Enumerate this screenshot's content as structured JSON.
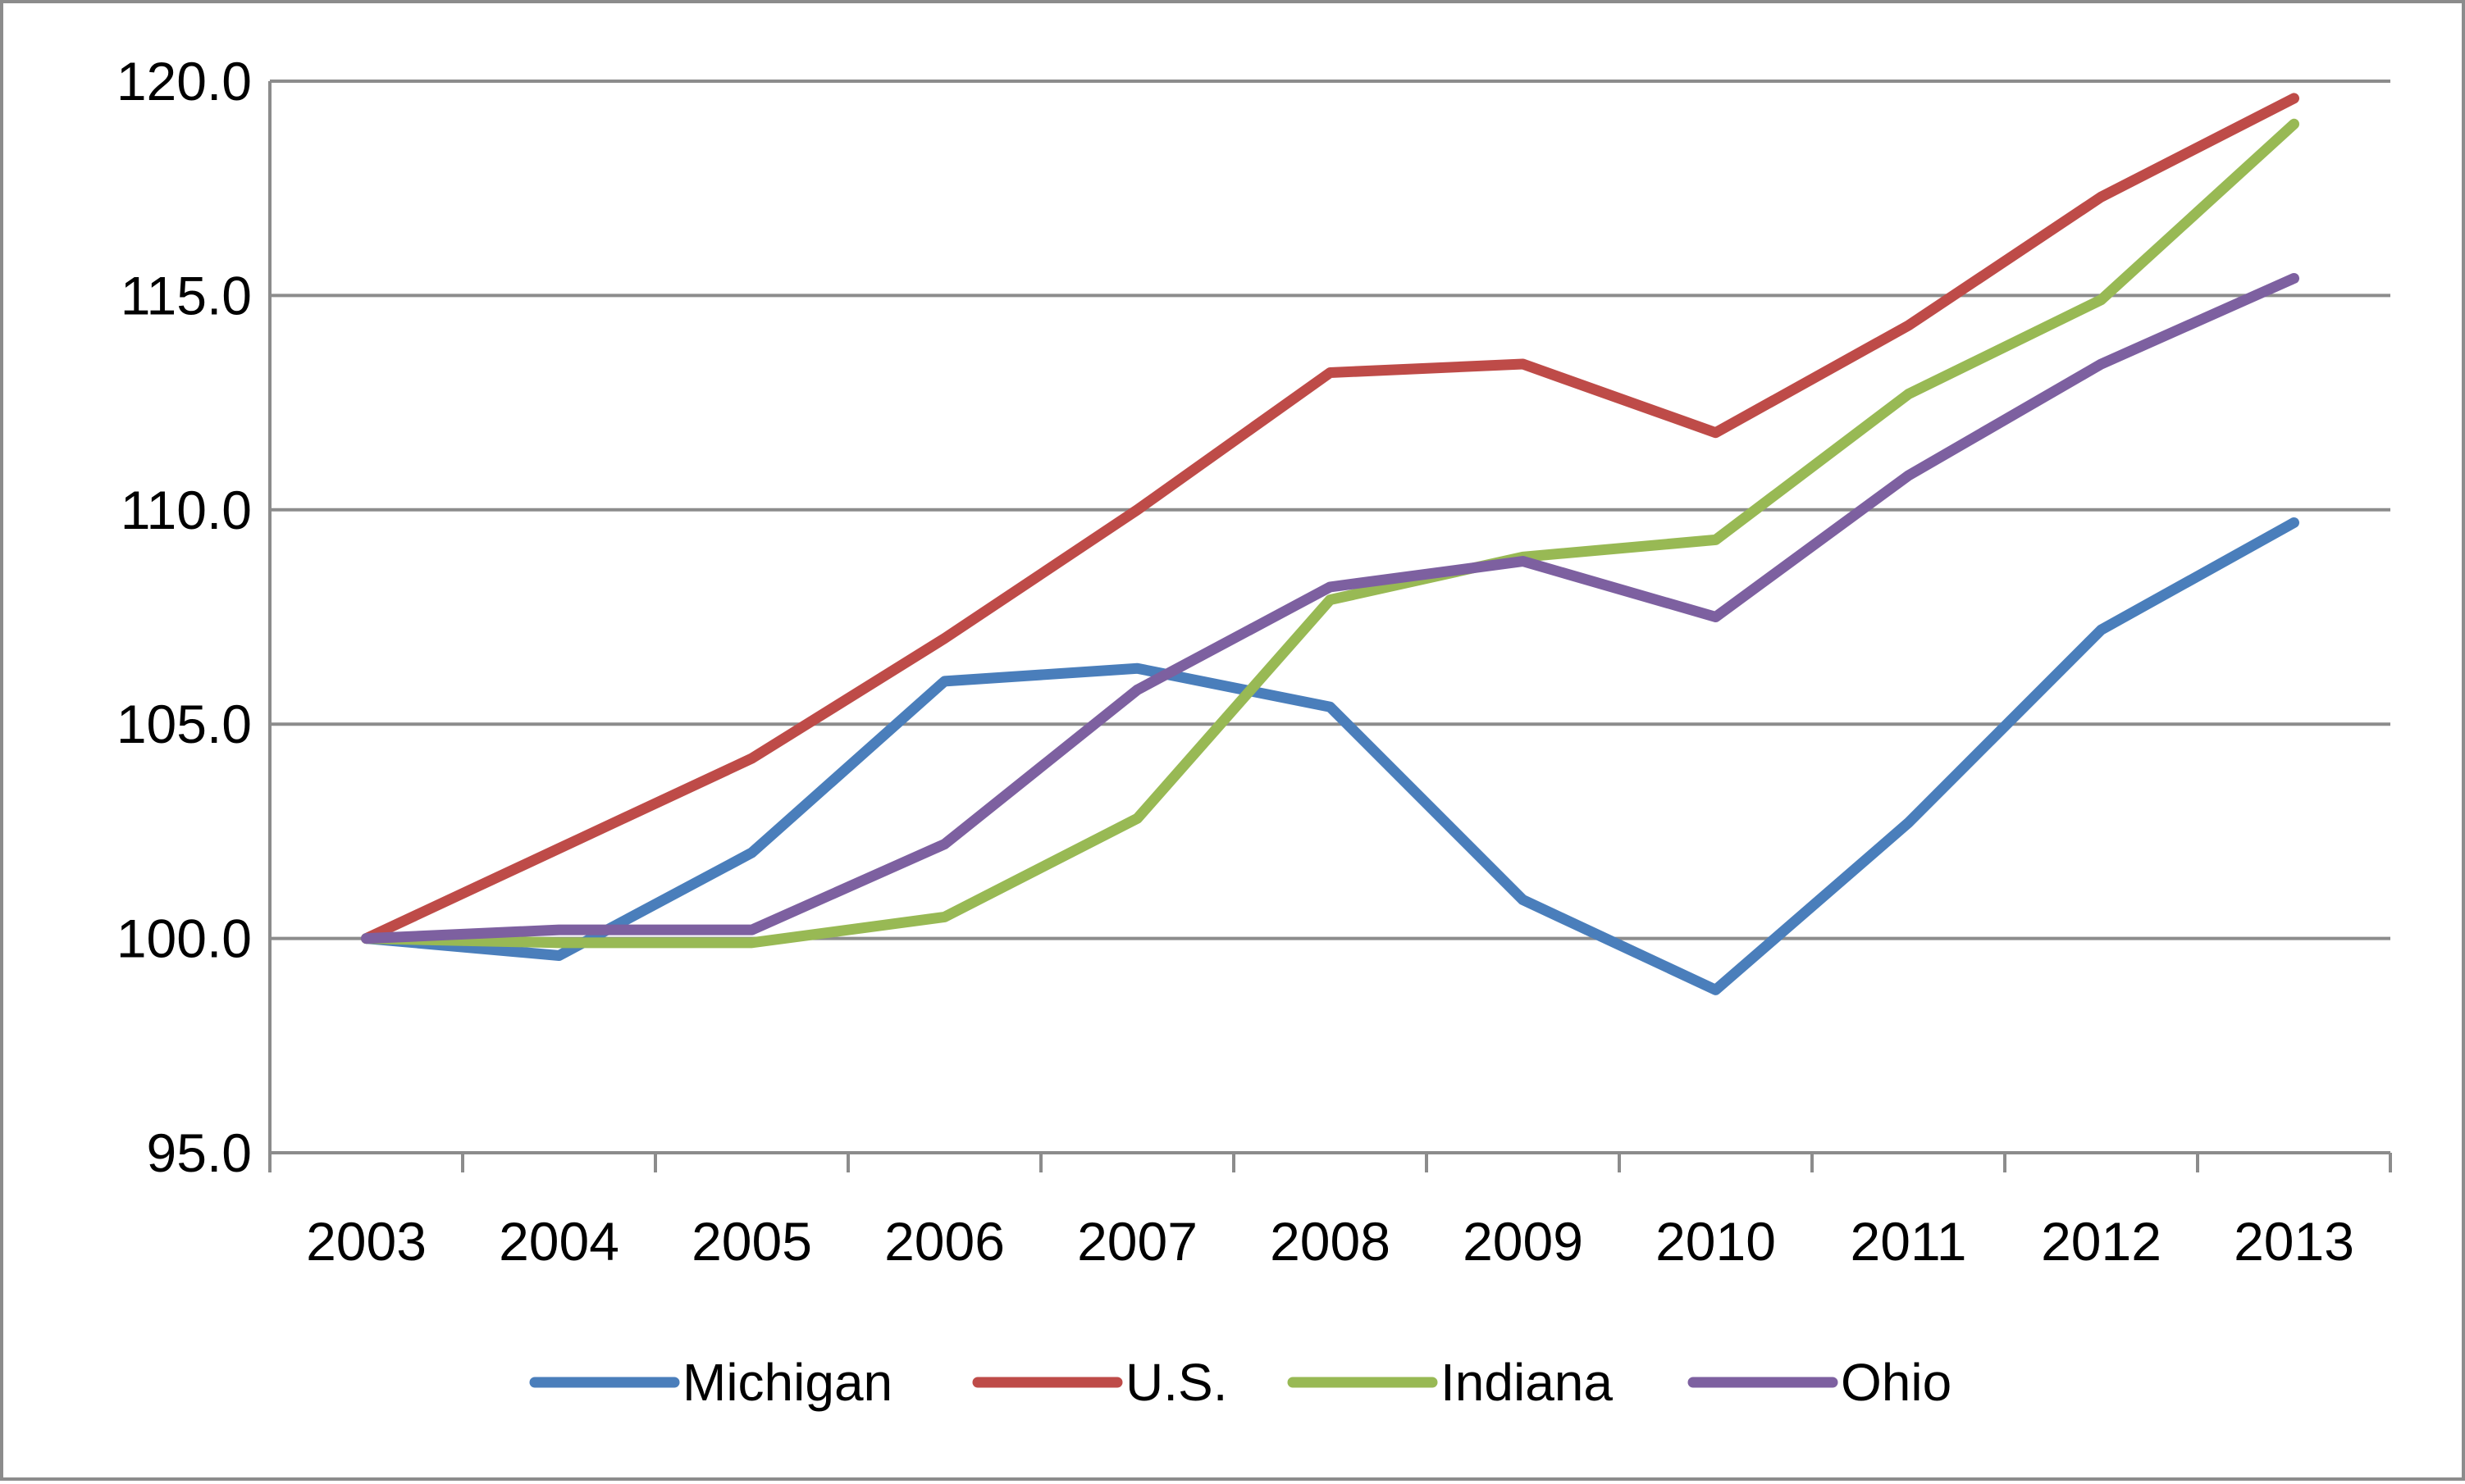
{
  "chart_data": {
    "type": "line",
    "title": "",
    "xlabel": "",
    "ylabel": "",
    "categories": [
      "2003",
      "2004",
      "2005",
      "2006",
      "2007",
      "2008",
      "2009",
      "2010",
      "2011",
      "2012",
      "2013"
    ],
    "ylim": [
      95.0,
      120.0
    ],
    "yticks": [
      "95.0",
      "100.0",
      "105.0",
      "110.0",
      "115.0",
      "120.0"
    ],
    "grid": "horizontal",
    "legend_position": "bottom",
    "series": [
      {
        "name": "Michigan",
        "color": "#4a7ebb",
        "values": [
          100.0,
          99.6,
          102.0,
          106.0,
          106.3,
          105.4,
          100.9,
          98.8,
          102.7,
          107.2,
          109.7
        ]
      },
      {
        "name": "U.S.",
        "color": "#be4b48",
        "values": [
          100.0,
          102.1,
          104.2,
          107.0,
          110.0,
          113.2,
          113.4,
          111.8,
          114.3,
          117.3,
          119.6
        ]
      },
      {
        "name": "Indiana",
        "color": "#98b954",
        "values": [
          100.0,
          99.9,
          99.9,
          100.5,
          102.8,
          107.9,
          108.9,
          109.3,
          112.7,
          114.9,
          119.0
        ]
      },
      {
        "name": "Ohio",
        "color": "#7d60a0",
        "values": [
          100.0,
          100.2,
          100.2,
          102.2,
          105.8,
          108.2,
          108.8,
          107.5,
          110.8,
          113.4,
          115.4
        ]
      }
    ]
  }
}
